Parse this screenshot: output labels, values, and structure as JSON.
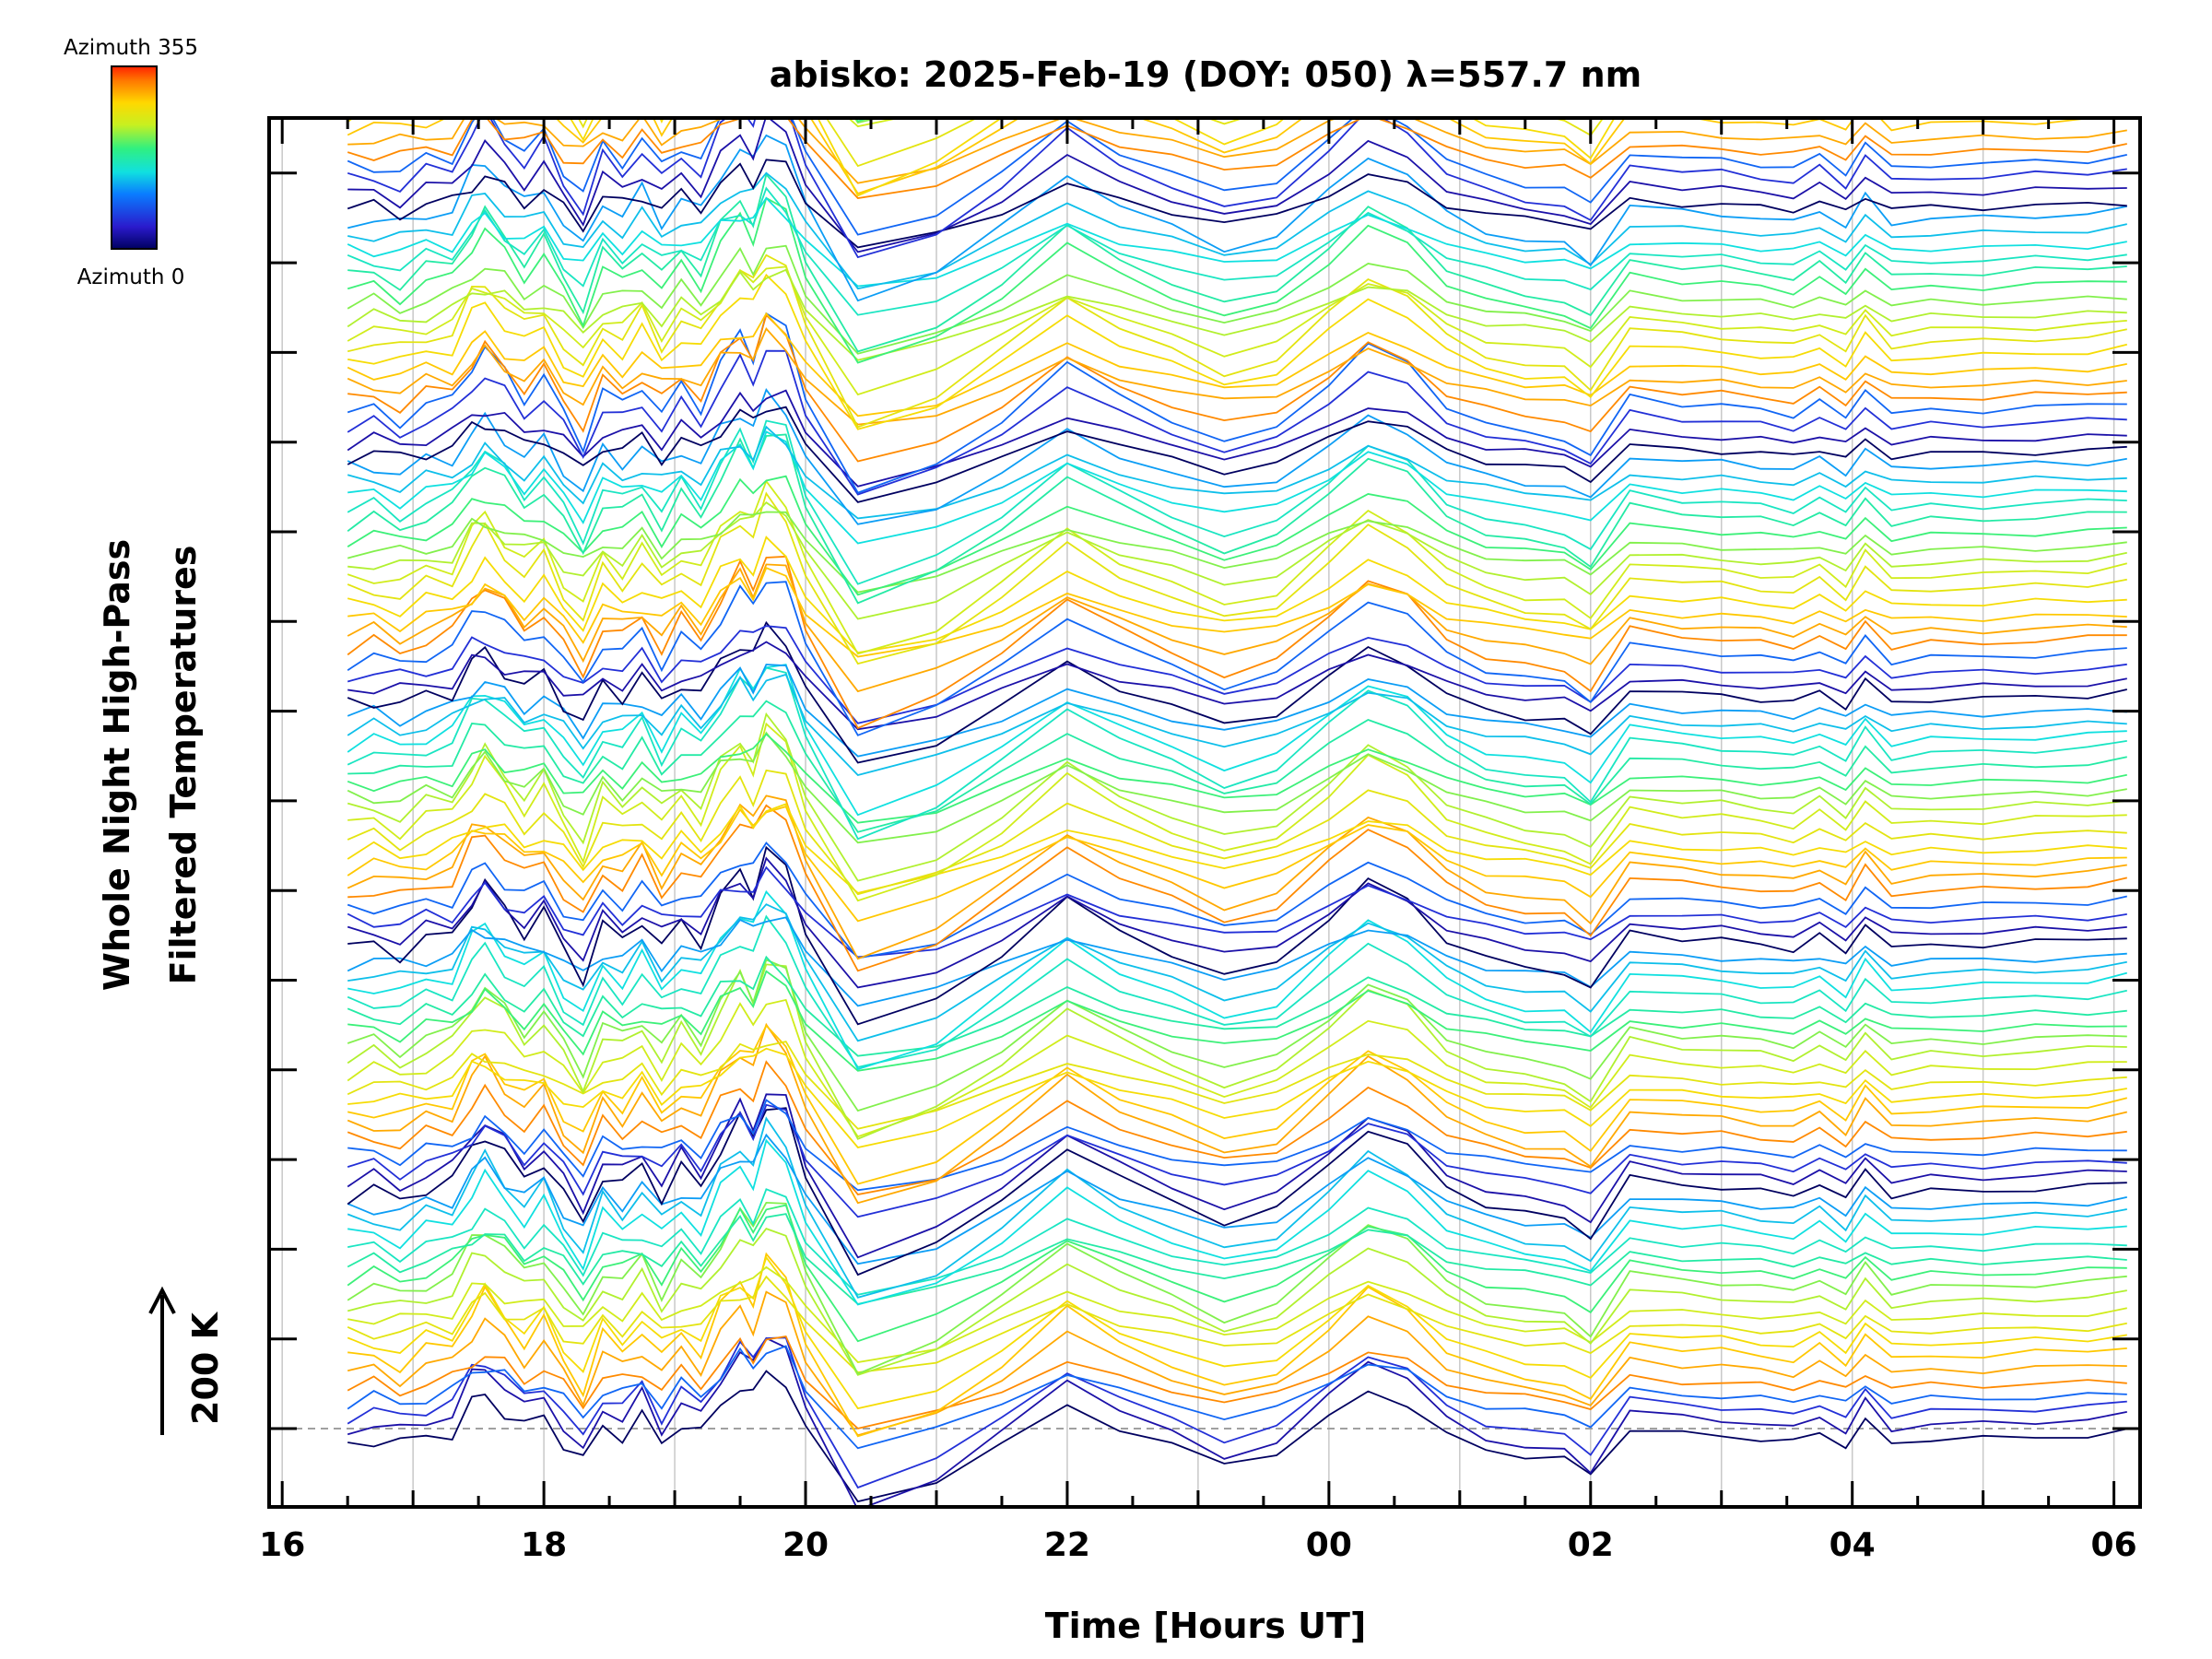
{
  "chart_data": {
    "type": "line",
    "title": "abisko: 2025-Feb-19 (DOY: 050) λ=557.7 nm",
    "xlabel": "Time [Hours UT]",
    "ylabel_line1": "Whole Night High-Pass",
    "ylabel_line2": "Filtered Temperatures",
    "scale_bar_label": "200 K",
    "colorbar": {
      "top_label": "Azimuth 355",
      "bottom_label": "Azimuth 0",
      "azimuth_min": 0,
      "azimuth_max": 355
    },
    "x_axis": {
      "unit": "hours UT (continuous, next-day hours shown modulo 24)",
      "range": [
        15.9,
        30.2
      ],
      "major_ticks": [
        16,
        18,
        20,
        22,
        24,
        26,
        28,
        30
      ],
      "tick_labels": [
        "16",
        "18",
        "20",
        "22",
        "00",
        "02",
        "04",
        "06"
      ],
      "minor_tick_step": 0.5,
      "grid": true
    },
    "y_axis": {
      "tick_count": 15,
      "baseline_dashed": true
    },
    "series_layout": {
      "groups": 6,
      "per_group": 18,
      "group_offset_ticks": 2.75,
      "line_offset_ticks": 0.153
    },
    "anomaly": {
      "x": [
        16.5,
        16.7,
        16.9,
        17.1,
        17.3,
        17.45,
        17.55,
        17.7,
        17.85,
        18.0,
        18.15,
        18.3,
        18.45,
        18.6,
        18.75,
        18.9,
        19.05,
        19.2,
        19.35,
        19.5,
        19.6,
        19.7,
        19.85,
        20.0,
        20.4,
        21.0,
        21.5,
        22.0,
        22.4,
        22.8,
        23.2,
        23.6,
        24.0,
        24.3,
        24.6,
        24.9,
        25.2,
        25.5,
        25.8,
        26.0,
        26.3,
        26.7,
        27.0,
        27.3,
        27.55,
        27.75,
        27.95,
        28.1,
        28.3,
        28.6,
        29.0,
        29.4,
        29.8,
        30.1
      ],
      "values": [
        0.0,
        0.05,
        -0.05,
        0.1,
        0.15,
        0.55,
        0.7,
        0.45,
        0.2,
        0.4,
        0.0,
        -0.3,
        0.25,
        0.1,
        0.35,
        0.0,
        0.3,
        0.1,
        0.55,
        0.85,
        0.65,
        1.05,
        0.9,
        0.2,
        -0.85,
        -0.55,
        -0.05,
        0.55,
        0.2,
        -0.05,
        -0.3,
        -0.15,
        0.35,
        0.75,
        0.55,
        0.1,
        -0.1,
        -0.2,
        -0.25,
        -0.45,
        0.2,
        0.12,
        0.1,
        0.05,
        0.0,
        0.15,
        -0.05,
        0.3,
        0.0,
        0.05,
        0.05,
        0.08,
        0.1,
        0.15
      ]
    },
    "colors": {
      "axis": "#000000",
      "grid": "#c8c8c8",
      "baseline": "#a0a0a0",
      "background": "#ffffff"
    }
  }
}
